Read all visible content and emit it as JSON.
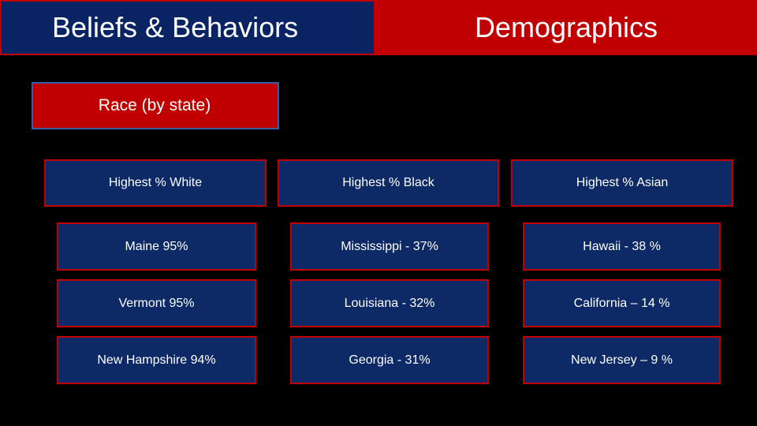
{
  "tabs": {
    "beliefs_label": "Beliefs & Behaviors",
    "demographics_label": "Demographics"
  },
  "section": {
    "label": "Race (by state)"
  },
  "columns": [
    {
      "header": "Highest % White",
      "rows": [
        "Maine 95%",
        "Vermont 95%",
        "New Hampshire 94%"
      ]
    },
    {
      "header": "Highest % Black",
      "rows": [
        "Mississippi -  37%",
        "Louisiana -  32%",
        "Georgia - 31%"
      ]
    },
    {
      "header": "Highest % Asian",
      "rows": [
        "Hawaii -  38 %",
        "California – 14 %",
        "New Jersey – 9 %"
      ]
    }
  ],
  "colors": {
    "background": "#000000",
    "navy": "#0d2a66",
    "red": "#c00000",
    "text": "#ffffff"
  }
}
